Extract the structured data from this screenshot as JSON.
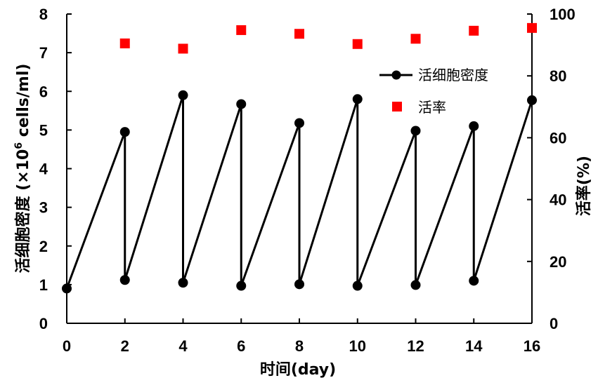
{
  "chart_data": {
    "type": "line",
    "xlabel": "时间(day)",
    "ylabel_left": "活细胞密度 (×10",
    "ylabel_left_sup": "6",
    "ylabel_left_suffix": " cells/ml)",
    "ylabel_right": "活率(%)",
    "x_ticks": [
      "0",
      "2",
      "4",
      "6",
      "8",
      "10",
      "12",
      "14",
      "16"
    ],
    "y_left_ticks": [
      "0",
      "1",
      "2",
      "3",
      "4",
      "5",
      "6",
      "7",
      "8"
    ],
    "y_right_ticks": [
      "0",
      "20",
      "40",
      "60",
      "80",
      "100"
    ],
    "xlim": [
      0,
      16
    ],
    "ylim_left": [
      0,
      8
    ],
    "ylim_right": [
      0,
      100
    ],
    "grid": false,
    "legend_position": "top-right",
    "series": [
      {
        "name": "活细胞密度",
        "axis": "left",
        "style": "line-marker",
        "color": "#000000",
        "x": [
          0,
          2,
          2,
          4,
          4,
          6,
          6,
          8,
          8,
          10,
          10,
          12,
          12,
          14,
          14,
          16
        ],
        "y": [
          0.9,
          4.95,
          1.12,
          5.9,
          1.05,
          5.67,
          0.97,
          5.18,
          1.01,
          5.8,
          0.97,
          4.98,
          0.99,
          5.1,
          1.1,
          5.77
        ]
      },
      {
        "name": "活率",
        "axis": "right",
        "style": "marker",
        "color": "#ff0000",
        "x": [
          2,
          4,
          6,
          8,
          10,
          12,
          14,
          16
        ],
        "y": [
          90.5,
          88.8,
          94.8,
          93.6,
          90.3,
          92.0,
          94.6,
          95.5
        ]
      }
    ]
  }
}
